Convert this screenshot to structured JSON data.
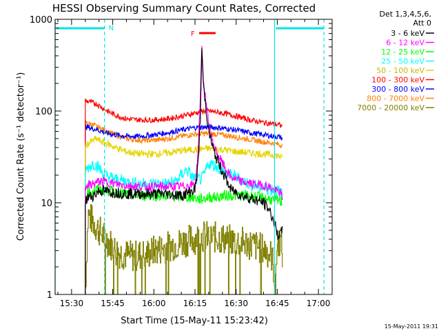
{
  "chart_data": {
    "type": "line",
    "title": "HESSI Observing Summary Count Rates, Corrected",
    "xlabel": "Start Time (15-May-11 15:23:42)",
    "ylabel": "Corrected Count Rate (s⁻¹ detector⁻¹)",
    "x_ticks": [
      "15:30",
      "15:45",
      "16:00",
      "16:15",
      "16:30",
      "16:45",
      "17:00"
    ],
    "x_tick_minutes": [
      30,
      45,
      60,
      75,
      90,
      105,
      120
    ],
    "xlim_minutes": [
      24,
      125
    ],
    "yscale": "log",
    "ylim": [
      1,
      1000
    ],
    "y_ticks": [
      1,
      10,
      100,
      1000
    ],
    "legend_header": [
      "Det 1,3,4,5,6,",
      "Att 0"
    ],
    "legend_position": "right",
    "footer_date": "15-May-2011 19:31",
    "annotations": [
      {
        "label": "N",
        "kind": "night",
        "color": "#00e5e5",
        "segments_minutes": [
          [
            24,
            42
          ],
          [
            104,
            122
          ]
        ],
        "dashed_minutes": [
          42,
          122
        ],
        "solid_minutes": [
          24,
          104
        ]
      },
      {
        "label": "F",
        "kind": "flare",
        "color": "#ff0000",
        "range_minutes": [
          76,
          82
        ]
      }
    ],
    "series": [
      {
        "name": "3 - 6 keV",
        "color": "#000000",
        "x": [
          35,
          36,
          38,
          40,
          42,
          44,
          46,
          50,
          55,
          60,
          65,
          70,
          73,
          75,
          76,
          77,
          77.5,
          78,
          80,
          82,
          85,
          88,
          92,
          96,
          100,
          102,
          104,
          105,
          106,
          107
        ],
        "y": [
          10,
          11.5,
          12,
          13.5,
          13.5,
          13,
          13,
          12.5,
          12.5,
          12.5,
          12.5,
          12,
          13,
          14,
          23,
          90,
          510,
          200,
          60,
          35,
          22,
          14,
          12,
          11,
          10,
          8.5,
          6,
          4.5,
          4.5,
          5
        ]
      },
      {
        "name": "6 - 12 keV",
        "color": "#ff00ff",
        "x": [
          35,
          36,
          38,
          40,
          42,
          44,
          46,
          50,
          55,
          60,
          65,
          70,
          73,
          75,
          76,
          77,
          77.5,
          78,
          80,
          82,
          85,
          88,
          92,
          96,
          100,
          102,
          104,
          106,
          107
        ],
        "y": [
          15,
          15.5,
          16,
          17,
          17,
          16.5,
          16,
          15.5,
          15,
          15,
          15,
          15,
          15.5,
          16,
          30,
          150,
          550,
          220,
          70,
          40,
          27,
          19,
          17,
          16,
          15.5,
          15,
          13.5,
          13,
          11
        ]
      },
      {
        "name": "12 - 25 keV",
        "color": "#00ff00",
        "x": [
          35,
          36,
          38,
          40,
          42,
          44,
          46,
          50,
          55,
          60,
          65,
          70,
          72,
          74,
          76,
          78,
          80,
          83,
          86,
          90,
          94,
          98,
          102,
          104,
          106,
          107
        ],
        "y": [
          12,
          13,
          13.5,
          14,
          14,
          13.5,
          13,
          12.5,
          12,
          12,
          12,
          11.5,
          11.5,
          11.5,
          11,
          11,
          11.5,
          11.5,
          12,
          12,
          12,
          11.5,
          11,
          10.5,
          10.5,
          10
        ]
      },
      {
        "name": "25 - 50 keV",
        "color": "#00ffff",
        "x": [
          35,
          36,
          38,
          40,
          42,
          44,
          46,
          50,
          55,
          60,
          64,
          68,
          70,
          72,
          74,
          76,
          77,
          78,
          80,
          83,
          86,
          90,
          94,
          98,
          102,
          104,
          106,
          107
        ],
        "y": [
          22,
          24,
          27,
          24,
          20,
          19,
          18,
          17,
          16,
          16,
          16,
          17,
          20,
          23,
          19,
          18,
          18,
          19,
          27,
          25,
          21,
          19,
          16.5,
          15,
          14,
          14,
          13,
          12
        ]
      },
      {
        "name": "50 - 100 keV",
        "color": "#e5d500",
        "x": [
          35,
          37,
          39,
          41,
          43,
          46,
          50,
          55,
          60,
          65,
          70,
          75,
          80,
          85,
          90,
          95,
          100,
          104,
          106,
          107
        ],
        "y": [
          42,
          46,
          50,
          46,
          44,
          40,
          36,
          34,
          34,
          35,
          37,
          38,
          39,
          38,
          36,
          35,
          34,
          33,
          32,
          30
        ]
      },
      {
        "name": "100 - 300 keV",
        "color": "#ff0000",
        "x": [
          35,
          37,
          39,
          41,
          43,
          46,
          50,
          55,
          60,
          65,
          70,
          75,
          78,
          80,
          85,
          90,
          95,
          100,
          104,
          106,
          107
        ],
        "y": [
          130,
          125,
          120,
          110,
          100,
          90,
          82,
          80,
          80,
          82,
          88,
          95,
          100,
          100,
          95,
          88,
          80,
          75,
          72,
          70,
          68
        ]
      },
      {
        "name": "300 - 800 keV",
        "color": "#0000ff",
        "x": [
          35,
          37,
          39,
          41,
          43,
          46,
          50,
          55,
          60,
          65,
          70,
          75,
          80,
          85,
          90,
          95,
          100,
          104,
          106,
          107
        ],
        "y": [
          68,
          65,
          63,
          60,
          57,
          55,
          53,
          53,
          55,
          58,
          62,
          66,
          67,
          65,
          62,
          58,
          55,
          53,
          52,
          50
        ]
      },
      {
        "name": "800 - 7000 keV",
        "color": "#ff8000",
        "x": [
          35,
          37,
          39,
          41,
          43,
          46,
          50,
          55,
          60,
          65,
          70,
          75,
          80,
          85,
          90,
          95,
          100,
          104,
          106,
          107
        ],
        "y": [
          75,
          72,
          68,
          64,
          60,
          55,
          50,
          48,
          48,
          50,
          53,
          56,
          57,
          55,
          52,
          49,
          46,
          44,
          43,
          42
        ]
      },
      {
        "name": "7000 - 20000 keV",
        "color": "#808000",
        "x": [
          35,
          36,
          38,
          40,
          42,
          44,
          46,
          48,
          50,
          52,
          55,
          58,
          60,
          63,
          66,
          70,
          74,
          78,
          82,
          86,
          90,
          94,
          98,
          101,
          103,
          104,
          105,
          106,
          107
        ],
        "y": [
          1.2,
          7.5,
          6,
          5,
          4.2,
          3.6,
          3.0,
          2.8,
          2.7,
          2.6,
          2.7,
          2.8,
          3.0,
          3.2,
          3.4,
          3.7,
          4.0,
          4.3,
          4.2,
          4.0,
          3.8,
          3.6,
          3.3,
          3.0,
          2.6,
          1.5,
          3.5,
          4.0,
          2.5
        ]
      }
    ]
  }
}
